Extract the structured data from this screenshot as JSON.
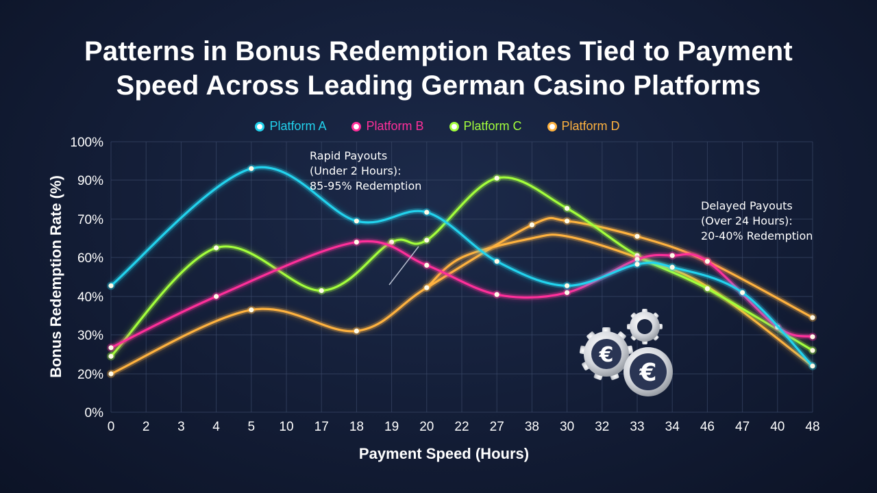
{
  "chart_data": {
    "type": "line",
    "title_line1": "Patterns in Bonus Redemption Rates Tied to Payment",
    "title_line2": "Speed Across Leading German Casino Platforms",
    "xlabel": "Payment Speed (Hours)",
    "ylabel": "Bonus Redemption Rate (%)",
    "categories": [
      "0",
      "2",
      "3",
      "4",
      "5",
      "10",
      "17",
      "18",
      "19",
      "20",
      "22",
      "27",
      "38",
      "30",
      "32",
      "33",
      "34",
      "46",
      "47",
      "40",
      "48"
    ],
    "y_tick_labels": [
      "0%",
      "20%",
      "30%",
      "40%",
      "60%",
      "70%",
      "90%",
      "100%"
    ],
    "grid": true,
    "legend_position": "top",
    "series": [
      {
        "name": "Platform A",
        "color": "#22d3ee",
        "points": [
          [
            0,
            45.5
          ],
          [
            4,
            93
          ],
          [
            7,
            69.5
          ],
          [
            9,
            73.5
          ],
          [
            11,
            58
          ],
          [
            13,
            45.5
          ],
          [
            15,
            56.5
          ],
          [
            16,
            55
          ],
          [
            18,
            42
          ],
          [
            20,
            22
          ]
        ]
      },
      {
        "name": "Platform B",
        "color": "#ff2f9a",
        "points": [
          [
            0,
            26.7
          ],
          [
            3,
            40
          ],
          [
            7,
            64
          ],
          [
            9,
            56
          ],
          [
            11,
            41
          ],
          [
            13,
            42
          ],
          [
            15,
            59
          ],
          [
            16,
            60.5
          ],
          [
            17,
            58
          ],
          [
            19,
            32
          ],
          [
            20,
            29.5
          ]
        ]
      },
      {
        "name": "Platform C",
        "color": "#a3ff3c",
        "points": [
          [
            0,
            24.5
          ],
          [
            3,
            62.5
          ],
          [
            6,
            43
          ],
          [
            8,
            64
          ],
          [
            9,
            64.5
          ],
          [
            11,
            90.5
          ],
          [
            13,
            75.5
          ],
          [
            15,
            60.5
          ],
          [
            17,
            44
          ],
          [
            20,
            26
          ]
        ]
      },
      {
        "name": "Platform D",
        "color": "#ffb23f",
        "points": [
          [
            0,
            20
          ],
          [
            4,
            36.5
          ],
          [
            7,
            31
          ],
          [
            9,
            44.5
          ],
          [
            12,
            68.5
          ],
          [
            13,
            69.5
          ],
          [
            15,
            65.5
          ],
          [
            17,
            58
          ],
          [
            20,
            34.5
          ]
        ]
      },
      {
        "name": "",
        "color": "#ffb23f",
        "points": [
          [
            9,
            44.5
          ],
          [
            10,
            60
          ],
          [
            12,
            65
          ],
          [
            13,
            65.5
          ],
          [
            15,
            60
          ],
          [
            17,
            45
          ],
          [
            20,
            22
          ]
        ]
      }
    ],
    "annotations": [
      {
        "lines": [
          "Rapid Payouts",
          "(Under 2 Hours):",
          "85-95% Redemption"
        ]
      },
      {
        "lines": [
          "Delayed Payouts",
          "(Over 24 Hours):",
          "20-40% Redemption"
        ]
      }
    ],
    "icon": "euro-gears-icon"
  }
}
